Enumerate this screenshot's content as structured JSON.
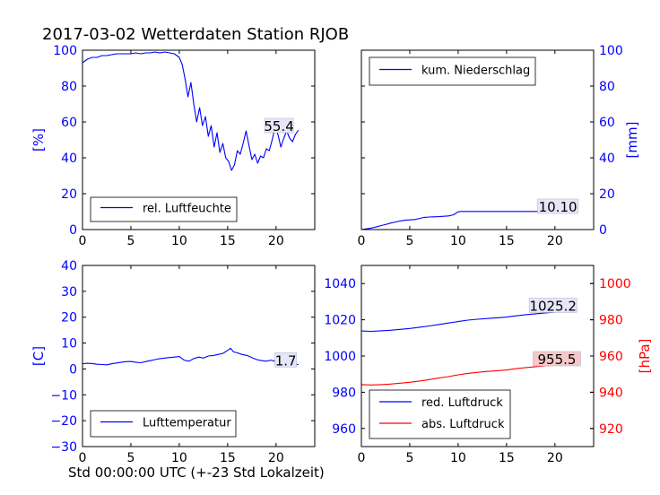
{
  "figure": {
    "title": "2017-03-02 Wetterdaten Station RJOB",
    "xlabel": "Std 00:00:00 UTC (+-23 Std Lokalzeit)"
  },
  "colors": {
    "blue": "#0000ff",
    "red": "#ff0000",
    "ann_red_bg": "#f6c8c8",
    "ann_blue_bg": "#e6e6f8"
  },
  "chart_data": [
    {
      "type": "line",
      "panel": "top-left",
      "xlim": [
        0,
        24
      ],
      "ylim": [
        0,
        100
      ],
      "xticks": [
        0,
        5,
        10,
        15,
        20
      ],
      "yticks": [
        0,
        20,
        40,
        60,
        80,
        100
      ],
      "ylabel": "[%]",
      "ylabel_side": "left",
      "legend_position": "lower-left",
      "series": [
        {
          "name": "rel. Luftfeuchte",
          "color": "#0000ff",
          "x": [
            0,
            0.5,
            1,
            1.5,
            2,
            2.5,
            3,
            3.5,
            4,
            4.5,
            5,
            5.5,
            6,
            6.5,
            7,
            7.5,
            8,
            8.5,
            9,
            9.5,
            10,
            10.3,
            10.6,
            10.9,
            11.2,
            11.5,
            11.8,
            12.1,
            12.4,
            12.7,
            13,
            13.3,
            13.6,
            13.9,
            14.2,
            14.5,
            14.8,
            15.1,
            15.4,
            15.7,
            16,
            16.3,
            16.6,
            16.9,
            17.2,
            17.5,
            17.8,
            18.1,
            18.4,
            18.7,
            19,
            19.3,
            19.6,
            19.9,
            20.2,
            20.5,
            20.8,
            21.1,
            21.4,
            21.7,
            22,
            22.3
          ],
          "y": [
            93,
            95,
            96,
            96,
            97,
            97,
            97.5,
            98,
            98,
            98,
            98,
            98.5,
            98,
            98.5,
            98.5,
            99,
            98.5,
            99,
            98.5,
            98,
            96,
            92,
            84,
            74,
            82,
            70,
            60,
            68,
            58,
            63,
            52,
            58,
            46,
            54,
            43,
            48,
            40,
            38,
            33,
            36,
            44,
            42,
            48,
            55,
            47,
            39,
            42,
            37,
            41,
            40,
            45,
            44,
            50,
            57,
            53,
            46,
            51,
            55,
            51,
            49,
            53,
            55.4
          ]
        }
      ],
      "annotations": [
        {
          "text": "55.4",
          "x": 20.3,
          "y": 58,
          "bg": "blue"
        }
      ]
    },
    {
      "type": "line",
      "panel": "top-right",
      "xlim": [
        0,
        24
      ],
      "ylim": [
        0,
        100
      ],
      "xticks": [
        0,
        5,
        10,
        15,
        20
      ],
      "yticks": [
        0,
        20,
        40,
        60,
        80,
        100
      ],
      "ylabel": "[mm]",
      "ylabel_side": "right",
      "legend_position": "upper-left",
      "series": [
        {
          "name": "kum. Niederschlag",
          "color": "#0000ff",
          "x": [
            0,
            0.5,
            1,
            1.5,
            2,
            2.5,
            3,
            3.5,
            4,
            4.5,
            5,
            5.5,
            6,
            6.5,
            7,
            7.5,
            8,
            8.5,
            9,
            9.5,
            9.8,
            10,
            10.3,
            11,
            12,
            13,
            14,
            15,
            16,
            17,
            18,
            19,
            20,
            21,
            22,
            22.3
          ],
          "y": [
            0,
            0.4,
            0.8,
            1.4,
            2.2,
            2.8,
            3.6,
            4.2,
            4.8,
            5.2,
            5.4,
            5.6,
            6.2,
            6.8,
            7,
            7.1,
            7.2,
            7.4,
            7.6,
            8.2,
            9.2,
            9.9,
            10.1,
            10.1,
            10.1,
            10.1,
            10.1,
            10.1,
            10.1,
            10.1,
            10.1,
            10.1,
            10.1,
            10.1,
            10.1,
            10.1
          ]
        }
      ],
      "annotations": [
        {
          "text": "10.10",
          "x": 20.3,
          "y": 13,
          "bg": "blue"
        }
      ]
    },
    {
      "type": "line",
      "panel": "bottom-left",
      "xlim": [
        0,
        24
      ],
      "ylim": [
        -30,
        40
      ],
      "xticks": [
        0,
        5,
        10,
        15,
        20
      ],
      "yticks": [
        -30,
        -20,
        -10,
        0,
        10,
        20,
        30,
        40
      ],
      "ylabel": "[C]",
      "ylabel_side": "left",
      "legend_position": "lower-left",
      "series": [
        {
          "name": "Lufttemperatur",
          "color": "#0000ff",
          "x": [
            0,
            0.5,
            1,
            1.5,
            2,
            2.5,
            3,
            3.5,
            4,
            4.5,
            5,
            5.5,
            6,
            6.5,
            7,
            7.5,
            8,
            8.5,
            9,
            9.5,
            10,
            10.5,
            11,
            11.5,
            12,
            12.5,
            13,
            13.5,
            14,
            14.5,
            15,
            15.3,
            15.6,
            16,
            16.5,
            17,
            17.5,
            18,
            18.5,
            19,
            19.5,
            20,
            20.5,
            21,
            21.5,
            22,
            22.3
          ],
          "y": [
            2,
            2.2,
            2.1,
            1.8,
            1.7,
            1.6,
            2,
            2.3,
            2.6,
            2.8,
            2.9,
            2.6,
            2.4,
            2.8,
            3.2,
            3.6,
            4,
            4.2,
            4.4,
            4.6,
            4.8,
            3.4,
            3,
            4,
            4.6,
            4.2,
            5,
            5.2,
            5.6,
            6,
            7.2,
            8,
            6.6,
            6.2,
            5.6,
            5.2,
            4.4,
            3.6,
            3.2,
            3,
            3.4,
            2.8,
            2.4,
            2.2,
            2,
            1.8,
            1.7
          ]
        }
      ],
      "annotations": [
        {
          "text": "1.7",
          "x": 21,
          "y": 3.5,
          "bg": "blue"
        }
      ]
    },
    {
      "type": "line",
      "panel": "bottom-right",
      "xlim": [
        0,
        24
      ],
      "ylim": [
        950,
        1050
      ],
      "ylim_right": [
        910,
        1010
      ],
      "xticks": [
        0,
        5,
        10,
        15,
        20
      ],
      "yticks": [
        960,
        980,
        1000,
        1020,
        1040
      ],
      "yticks_right": [
        920,
        940,
        960,
        980,
        1000
      ],
      "ylabel_right": "[hPa]",
      "legend_position": "lower-left",
      "series": [
        {
          "name": "red. Luftdruck",
          "color": "#0000ff",
          "axis": "left",
          "x": [
            0,
            1,
            2,
            3,
            4,
            5,
            6,
            7,
            8,
            9,
            10,
            11,
            12,
            13,
            14,
            15,
            16,
            17,
            18,
            19,
            20,
            21,
            22,
            22.3
          ],
          "y": [
            1013.8,
            1013.6,
            1013.9,
            1014.2,
            1014.7,
            1015.2,
            1015.9,
            1016.6,
            1017.4,
            1018.2,
            1019,
            1019.8,
            1020.3,
            1020.7,
            1021.1,
            1021.5,
            1022.2,
            1022.8,
            1023.3,
            1023.8,
            1024.2,
            1024.6,
            1025,
            1025.2
          ]
        },
        {
          "name": "abs. Luftdruck",
          "color": "#ff0000",
          "axis": "right",
          "x": [
            0,
            1,
            2,
            3,
            4,
            5,
            6,
            7,
            8,
            9,
            10,
            11,
            12,
            13,
            14,
            15,
            16,
            17,
            18,
            19,
            20,
            21,
            22,
            22.3
          ],
          "y": [
            944.2,
            944.0,
            944.2,
            944.5,
            945.0,
            945.5,
            946.2,
            947.0,
            947.8,
            948.6,
            949.6,
            950.4,
            951.0,
            951.5,
            951.9,
            952.3,
            953.0,
            953.6,
            954.1,
            954.6,
            954.9,
            955.1,
            955.4,
            955.5
          ]
        }
      ],
      "annotations": [
        {
          "text": "1025.2",
          "x": 19.8,
          "y": 1028,
          "bg": "blue"
        },
        {
          "text": "955.5",
          "x": 20.2,
          "y": 958.5,
          "bg": "red",
          "axis": "right"
        }
      ]
    }
  ]
}
